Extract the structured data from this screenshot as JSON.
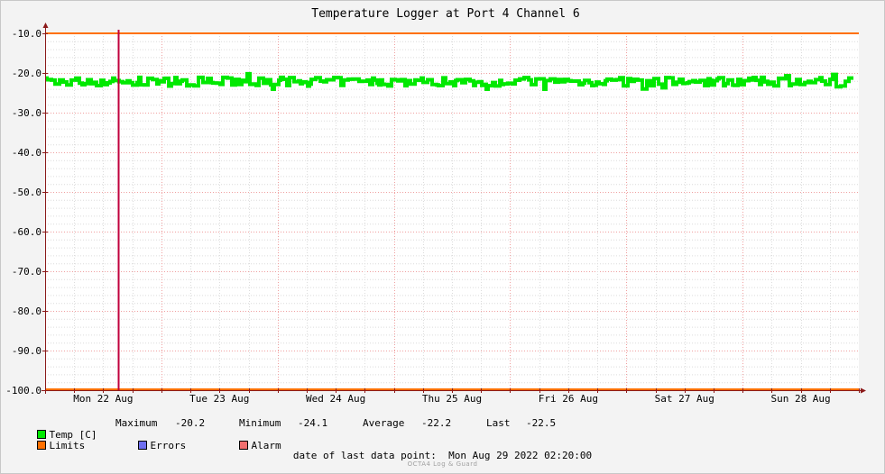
{
  "chart_data": {
    "type": "line",
    "title": "Temperature Logger at Port 4 Channel 6",
    "ylim": [
      -100,
      -10
    ],
    "y_ticks": [
      "-10.0",
      "-20.0",
      "-30.0",
      "-40.0",
      "-50.0",
      "-60.0",
      "-70.0",
      "-80.0",
      "-90.0",
      "-100.0"
    ],
    "y_tick_values": [
      -10,
      -20,
      -30,
      -40,
      -50,
      -60,
      -70,
      -80,
      -90,
      -100
    ],
    "x_day_labels": [
      "Mon 22 Aug",
      "Tue 23 Aug",
      "Wed 24 Aug",
      "Thu 25 Aug",
      "Fri 26 Aug",
      "Sat 27 Aug",
      "Sun 28 Aug"
    ],
    "x_range_days": [
      0,
      7
    ],
    "grid": true,
    "series": [
      {
        "name": "Temp [C]",
        "color": "#00e800",
        "min": -24.1,
        "max": -20.2,
        "average": -22.2,
        "last": -22.5
      },
      {
        "name": "Limits",
        "color": "#ff7000",
        "upper": -10,
        "lower": -100
      },
      {
        "name": "Errors",
        "color": "#6f6ff0"
      },
      {
        "name": "Alarm",
        "color": "#f06f6f"
      }
    ],
    "marker_day": 0.625
  },
  "legend": {
    "temp_label": "Temp [C]",
    "limits_label": "Limits",
    "errors_label": "Errors",
    "alarm_label": "Alarm"
  },
  "stats": {
    "maximum_label": "Maximum",
    "maximum_value": "-20.2",
    "minimum_label": "Minimum",
    "minimum_value": "-24.1",
    "average_label": "Average",
    "average_value": "-22.2",
    "last_label": "Last",
    "last_value": "-22.5"
  },
  "footer": {
    "last_point_label": "date of last data point:",
    "last_point_value": "Mon Aug 29 2022 02:20:00",
    "watermark": "OCTA4 Log & Guard"
  },
  "colors": {
    "temp": "#00e800",
    "limits": "#ff7000",
    "errors": "#6f6ff0",
    "alarm": "#f06f6f",
    "marker": "#c0003c",
    "axis": "#8b1a1a"
  }
}
